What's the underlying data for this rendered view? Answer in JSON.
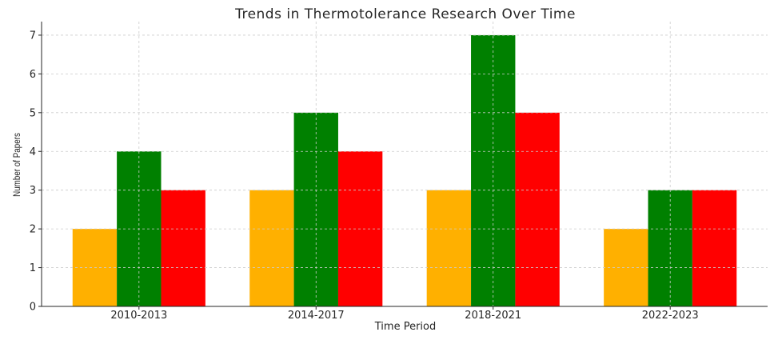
{
  "chart_data": {
    "type": "bar",
    "title": "Trends in Thermotolerance Research Over Time",
    "xlabel": "Time Period",
    "ylabel": "Number of Papers",
    "categories": [
      "2010-2013",
      "2014-2017",
      "2018-2021",
      "2022-2023"
    ],
    "series": [
      {
        "values": [
          2,
          3,
          3,
          2
        ],
        "color": "#FFB000"
      },
      {
        "values": [
          4,
          5,
          7,
          3
        ],
        "color": "#008000"
      },
      {
        "values": [
          3,
          4,
          5,
          3
        ],
        "color": "#FF0000"
      }
    ],
    "ylim": [
      0,
      7.35
    ],
    "yticks": [
      "0",
      "1",
      "2",
      "3",
      "4",
      "5",
      "6",
      "7"
    ],
    "grid": true,
    "legend": "none"
  }
}
